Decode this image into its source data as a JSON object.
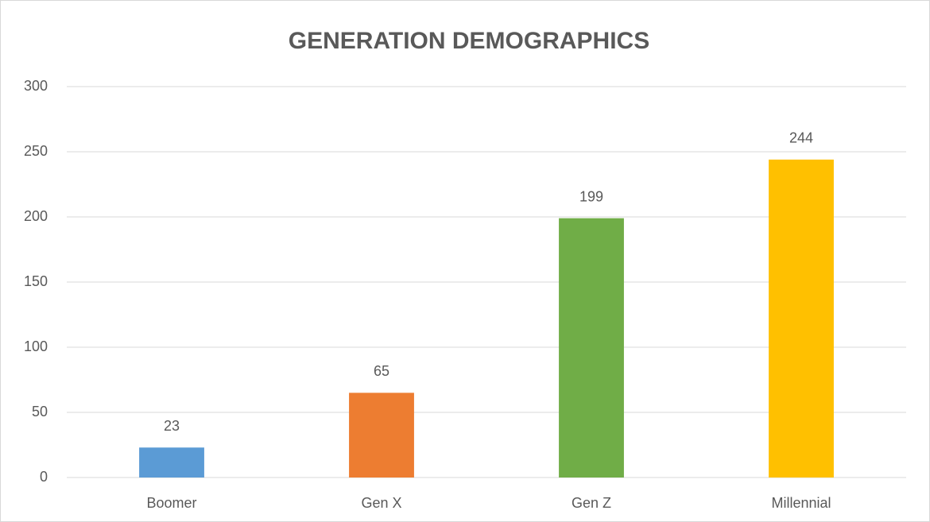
{
  "chart_data": {
    "type": "bar",
    "title": "GENERATION DEMOGRAPHICS",
    "categories": [
      "Boomer",
      "Gen X",
      "Gen Z",
      "Millennial"
    ],
    "values": [
      23,
      65,
      199,
      244
    ],
    "colors": [
      "#5b9bd5",
      "#ed7d31",
      "#70ad47",
      "#ffc000"
    ],
    "ylim": [
      0,
      300
    ],
    "yticks": [
      0,
      50,
      100,
      150,
      200,
      250,
      300
    ],
    "grid": true,
    "data_labels": true
  }
}
